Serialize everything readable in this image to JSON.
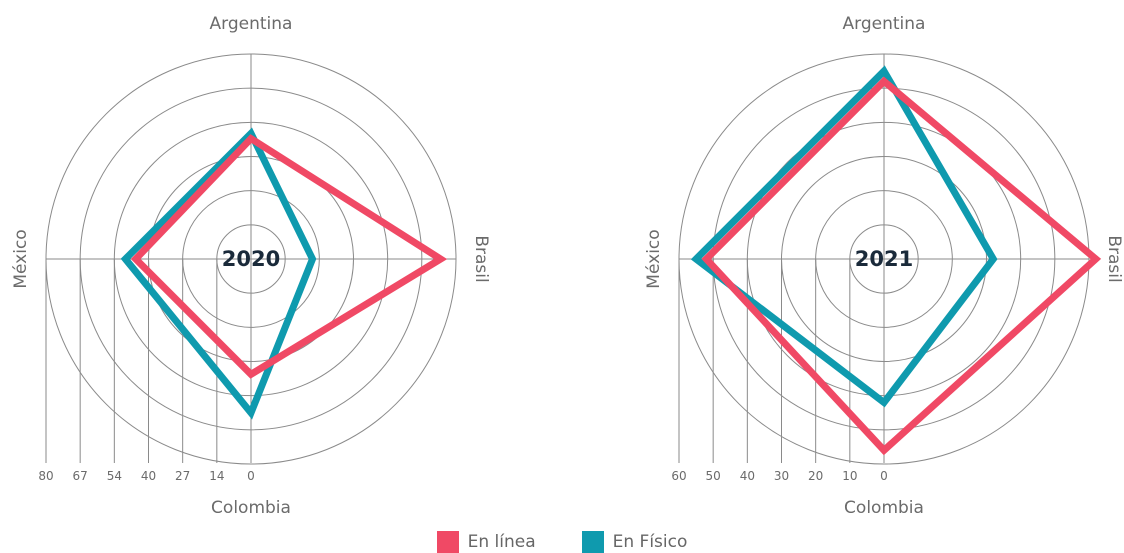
{
  "chart_data": [
    {
      "type": "radar",
      "center_label": "2020",
      "axes": [
        "Argentina",
        "Brasil",
        "Colombia",
        "México"
      ],
      "radial_ticks": [
        "80",
        "67",
        "54",
        "40",
        "27",
        "14",
        "0"
      ],
      "rmax": 80,
      "grid": true,
      "series": [
        {
          "name": "En línea",
          "values": [
            47,
            74,
            45,
            45
          ]
        },
        {
          "name": "En Físico",
          "values": [
            49,
            24,
            60,
            49
          ]
        }
      ]
    },
    {
      "type": "radar",
      "center_label": "2021",
      "axes": [
        "Argentina",
        "Brasil",
        "Colombia",
        "México"
      ],
      "radial_ticks": [
        "60",
        "50",
        "40",
        "30",
        "20",
        "10",
        "0"
      ],
      "rmax": 60,
      "grid": true,
      "series": [
        {
          "name": "En línea",
          "values": [
            52,
            62,
            56,
            52
          ]
        },
        {
          "name": "En Físico",
          "values": [
            55,
            32,
            42,
            55
          ]
        }
      ]
    }
  ],
  "legend": {
    "placement": "bottom-center",
    "items": [
      {
        "label": "En línea",
        "color": "#F04965"
      },
      {
        "label": "En Físico",
        "color": "#0F9AAE"
      }
    ]
  },
  "colors": {
    "online": "#F04965",
    "physical": "#0F9AAE",
    "grid": "#8a8a8a",
    "text": "#6b6b6b",
    "center_text": "#1a2a3a"
  }
}
